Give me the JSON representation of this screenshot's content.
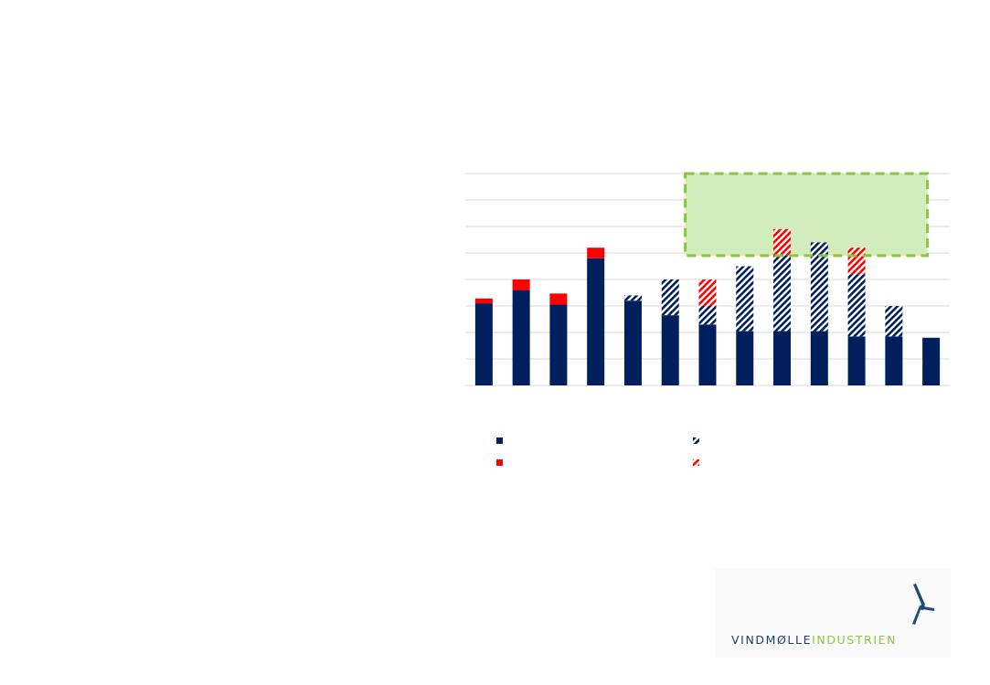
{
  "chart_data": {
    "type": "bar",
    "stacked": true,
    "title": "",
    "xlabel": "",
    "ylabel": "",
    "categories": [
      "",
      "",
      "",
      "",
      "",
      "",
      "",
      "",
      "",
      "",
      "",
      "",
      ""
    ],
    "ylim": [
      0,
      8
    ],
    "gridlines": [
      0,
      1,
      2,
      3,
      4,
      5,
      6,
      7,
      8
    ],
    "grid": true,
    "series": [
      {
        "name": "",
        "fill": "solid",
        "color": "#001f5c",
        "values": [
          3.1,
          3.6,
          3.05,
          4.8,
          3.2,
          2.65,
          2.3,
          2.05,
          2.05,
          2.05,
          1.85,
          1.85,
          1.8
        ]
      },
      {
        "name": "",
        "fill": "hatched",
        "color": "#001f5c",
        "values": [
          0,
          0,
          0,
          0,
          0.2,
          1.35,
          0.7,
          2.45,
          2.85,
          3.35,
          2.35,
          1.15,
          0
        ]
      },
      {
        "name": "",
        "fill": "solid",
        "color": "#ff0000",
        "values": [
          0.18,
          0.4,
          0.42,
          0.4,
          0,
          0,
          0,
          0,
          0,
          0,
          0,
          0,
          0
        ]
      },
      {
        "name": "",
        "fill": "hatched",
        "color": "#ff0000",
        "values": [
          0,
          0,
          0,
          0,
          0,
          0,
          1.0,
          0,
          1.0,
          0,
          1.0,
          0,
          0
        ]
      }
    ],
    "target_band": {
      "from_category_index": 6,
      "to_category_index": 12,
      "low": 4.9,
      "high": 8.0,
      "fill": "#d3ecbc",
      "border": "#8cc63f"
    },
    "legend": {
      "position": "bottom"
    }
  },
  "colors": {
    "navy": "#001f5c",
    "red": "#ff0000",
    "grid": "#d9d9d9",
    "band_fill": "#d3ecbc",
    "band_border": "#8cc63f"
  },
  "logo": {
    "text_part1": "VINDMØLLE",
    "text_part2": "INDUSTRIEN",
    "icon": "wind-turbine-icon"
  }
}
